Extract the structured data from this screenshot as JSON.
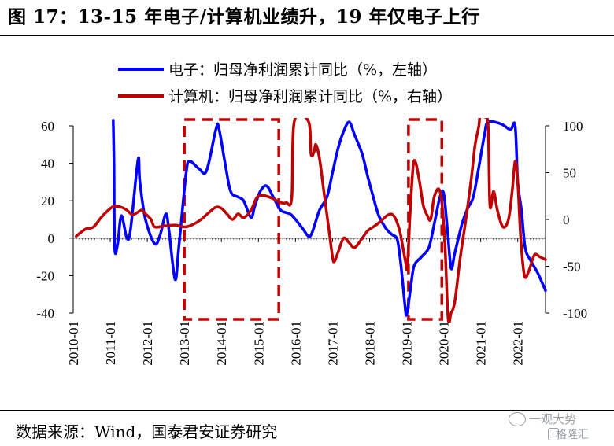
{
  "title": "图 17：13-15 年电子/计算机业绩升，19 年仅电子上行",
  "source": "数据来源：Wind，国泰君安证券研究",
  "watermark": {
    "line1": "一观大势",
    "line2": "格隆汇"
  },
  "chart_data": {
    "type": "line",
    "legend": [
      {
        "name": "电子：归母净利润累计同比（%，左轴）",
        "color": "#0000ff"
      },
      {
        "name": "计算机：归母净利润累计同比（%，右轴）",
        "color": "#c00000"
      }
    ],
    "left_axis": {
      "ylim": [
        -40,
        60
      ],
      "ticks": [
        "60",
        "40",
        "20",
        "0",
        "-20",
        "-40"
      ]
    },
    "right_axis": {
      "ylim": [
        -100,
        100
      ],
      "ticks": [
        "100",
        "50",
        "0",
        "-50",
        "-100"
      ]
    },
    "x_ticks": [
      "2010-01",
      "2011-01",
      "2012-01",
      "2013-01",
      "2014-01",
      "2015-01",
      "2016-01",
      "2017-01",
      "2018-01",
      "2019-01",
      "2020-01",
      "2021-01",
      "2022-01"
    ],
    "highlight_periods": [
      {
        "from": 2013.0,
        "to": 2015.55
      },
      {
        "from": 2019.05,
        "to": 2019.95
      }
    ],
    "series": [
      {
        "name": "电子：归母净利润累计同比（%，左轴）",
        "axis": "left",
        "color": "#0000ff",
        "points": [
          [
            2011.08,
            63
          ],
          [
            2011.1,
            40
          ],
          [
            2011.12,
            -5
          ],
          [
            2011.2,
            -3
          ],
          [
            2011.3,
            12
          ],
          [
            2011.45,
            0
          ],
          [
            2011.55,
            5
          ],
          [
            2011.75,
            42
          ],
          [
            2011.8,
            30
          ],
          [
            2011.95,
            10
          ],
          [
            2012.2,
            -3
          ],
          [
            2012.35,
            2
          ],
          [
            2012.5,
            13
          ],
          [
            2012.58,
            5
          ],
          [
            2012.75,
            -22
          ],
          [
            2012.85,
            -5
          ],
          [
            2013.05,
            35
          ],
          [
            2013.15,
            41
          ],
          [
            2013.4,
            37
          ],
          [
            2013.6,
            36
          ],
          [
            2013.85,
            58
          ],
          [
            2013.93,
            59
          ],
          [
            2014.1,
            40
          ],
          [
            2014.25,
            25
          ],
          [
            2014.45,
            22
          ],
          [
            2014.6,
            20
          ],
          [
            2014.8,
            11
          ],
          [
            2014.9,
            17
          ],
          [
            2015.05,
            25
          ],
          [
            2015.22,
            28
          ],
          [
            2015.4,
            22
          ],
          [
            2015.6,
            15
          ],
          [
            2015.85,
            13
          ],
          [
            2016.0,
            10
          ],
          [
            2016.2,
            5
          ],
          [
            2016.35,
            1
          ],
          [
            2016.45,
            3
          ],
          [
            2016.65,
            15
          ],
          [
            2016.85,
            22
          ],
          [
            2017.0,
            35
          ],
          [
            2017.15,
            48
          ],
          [
            2017.3,
            57
          ],
          [
            2017.45,
            62
          ],
          [
            2017.6,
            55
          ],
          [
            2017.8,
            45
          ],
          [
            2017.95,
            33
          ],
          [
            2018.1,
            22
          ],
          [
            2018.25,
            12
          ],
          [
            2018.45,
            5
          ],
          [
            2018.6,
            2
          ],
          [
            2018.75,
            -1
          ],
          [
            2018.85,
            -15
          ],
          [
            2018.95,
            -35
          ],
          [
            2019.0,
            -41
          ],
          [
            2019.1,
            -28
          ],
          [
            2019.2,
            -15
          ],
          [
            2019.4,
            -10
          ],
          [
            2019.6,
            -5
          ],
          [
            2019.75,
            8
          ],
          [
            2019.9,
            22
          ],
          [
            2020.0,
            24
          ],
          [
            2020.1,
            5
          ],
          [
            2020.2,
            -16
          ],
          [
            2020.3,
            -8
          ],
          [
            2020.5,
            8
          ],
          [
            2020.65,
            16
          ],
          [
            2020.8,
            22
          ],
          [
            2020.95,
            38
          ],
          [
            2021.1,
            55
          ],
          [
            2021.2,
            62
          ],
          [
            2021.55,
            61
          ],
          [
            2021.8,
            58
          ],
          [
            2021.93,
            60
          ],
          [
            2022.0,
            30
          ],
          [
            2022.1,
            15
          ],
          [
            2022.2,
            -5
          ],
          [
            2022.35,
            -12
          ],
          [
            2022.55,
            -19
          ],
          [
            2022.75,
            -28
          ]
        ]
      },
      {
        "name": "计算机：归母净利润累计同比（%，右轴）",
        "axis": "right",
        "color": "#c00000",
        "points": [
          [
            2010.08,
            -18
          ],
          [
            2010.2,
            -14
          ],
          [
            2010.35,
            -10
          ],
          [
            2010.55,
            -8
          ],
          [
            2010.75,
            2
          ],
          [
            2010.95,
            10
          ],
          [
            2011.1,
            14
          ],
          [
            2011.3,
            13
          ],
          [
            2011.45,
            10
          ],
          [
            2011.6,
            5
          ],
          [
            2011.75,
            8
          ],
          [
            2011.85,
            10
          ],
          [
            2011.95,
            6
          ],
          [
            2012.1,
            0
          ],
          [
            2012.2,
            -8
          ],
          [
            2012.45,
            -7
          ],
          [
            2012.75,
            -6
          ],
          [
            2013.0,
            -8
          ],
          [
            2013.2,
            -6
          ],
          [
            2013.45,
            0
          ],
          [
            2013.65,
            7
          ],
          [
            2013.85,
            13
          ],
          [
            2014.0,
            12
          ],
          [
            2014.15,
            6
          ],
          [
            2014.3,
            0
          ],
          [
            2014.45,
            6
          ],
          [
            2014.6,
            2
          ],
          [
            2014.8,
            10
          ],
          [
            2014.95,
            23
          ],
          [
            2015.1,
            26
          ],
          [
            2015.35,
            23
          ],
          [
            2015.6,
            18
          ],
          [
            2015.75,
            18
          ],
          [
            2015.9,
            23
          ],
          [
            2015.97,
            105
          ],
          [
            2016.35,
            105
          ],
          [
            2016.42,
            70
          ],
          [
            2016.5,
            72
          ],
          [
            2016.55,
            80
          ],
          [
            2016.65,
            65
          ],
          [
            2016.75,
            35
          ],
          [
            2016.9,
            -10
          ],
          [
            2017.0,
            -40
          ],
          [
            2017.05,
            -45
          ],
          [
            2017.15,
            -35
          ],
          [
            2017.3,
            -20
          ],
          [
            2017.45,
            -25
          ],
          [
            2017.6,
            -30
          ],
          [
            2017.8,
            -20
          ],
          [
            2017.95,
            -12
          ],
          [
            2018.1,
            -8
          ],
          [
            2018.3,
            -2
          ],
          [
            2018.5,
            5
          ],
          [
            2018.65,
            4
          ],
          [
            2018.8,
            -10
          ],
          [
            2018.9,
            -30
          ],
          [
            2018.97,
            -45
          ],
          [
            2019.02,
            -50
          ],
          [
            2019.1,
            10
          ],
          [
            2019.18,
            58
          ],
          [
            2019.25,
            60
          ],
          [
            2019.35,
            40
          ],
          [
            2019.45,
            15
          ],
          [
            2019.55,
            5
          ],
          [
            2019.65,
            0
          ],
          [
            2019.75,
            25
          ],
          [
            2019.9,
            30
          ],
          [
            2020.02,
            -15
          ],
          [
            2020.12,
            -105
          ],
          [
            2020.2,
            -100
          ],
          [
            2020.3,
            -88
          ],
          [
            2020.45,
            -40
          ],
          [
            2020.6,
            0
          ],
          [
            2020.75,
            45
          ],
          [
            2020.85,
            80
          ],
          [
            2020.95,
            100
          ],
          [
            2021.0,
            120
          ],
          [
            2021.1,
            110
          ],
          [
            2021.2,
            100
          ],
          [
            2021.25,
            15
          ],
          [
            2021.35,
            30
          ],
          [
            2021.45,
            10
          ],
          [
            2021.6,
            -8
          ],
          [
            2021.75,
            0
          ],
          [
            2021.85,
            30
          ],
          [
            2021.93,
            62
          ],
          [
            2022.0,
            40
          ],
          [
            2022.08,
            -20
          ],
          [
            2022.18,
            -60
          ],
          [
            2022.3,
            -55
          ],
          [
            2022.45,
            -38
          ],
          [
            2022.6,
            -40
          ],
          [
            2022.75,
            -43
          ]
        ]
      }
    ]
  }
}
